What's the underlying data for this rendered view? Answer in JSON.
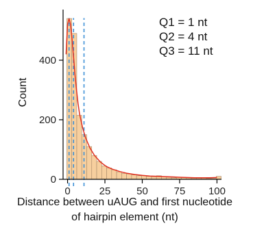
{
  "chart_data": {
    "type": "histogram",
    "xlabel_line1": "Distance between uAUG and first nucleotide",
    "xlabel_line2": "of hairpin element (nt)",
    "ylabel": "Count",
    "xlim": [
      -3,
      103
    ],
    "ylim": [
      0,
      570
    ],
    "x_ticks": [
      0,
      25,
      50,
      75,
      100
    ],
    "y_ticks": [
      0,
      200,
      400
    ],
    "bin_width": 3.33,
    "bins": [
      {
        "x0": -0.5,
        "count": 540
      },
      {
        "x0": 2.83,
        "count": 490
      },
      {
        "x0": 6.17,
        "count": 215
      },
      {
        "x0": 9.5,
        "count": 150
      },
      {
        "x0": 12.83,
        "count": 110
      },
      {
        "x0": 16.17,
        "count": 80
      },
      {
        "x0": 19.5,
        "count": 60
      },
      {
        "x0": 22.83,
        "count": 45
      },
      {
        "x0": 26.17,
        "count": 38
      },
      {
        "x0": 29.5,
        "count": 32
      },
      {
        "x0": 32.83,
        "count": 25
      },
      {
        "x0": 36.17,
        "count": 20
      },
      {
        "x0": 39.5,
        "count": 18
      },
      {
        "x0": 42.83,
        "count": 15
      },
      {
        "x0": 46.17,
        "count": 12
      },
      {
        "x0": 49.5,
        "count": 12
      },
      {
        "x0": 52.83,
        "count": 10
      },
      {
        "x0": 56.17,
        "count": 9
      },
      {
        "x0": 59.5,
        "count": 12
      },
      {
        "x0": 62.83,
        "count": 9
      },
      {
        "x0": 66.17,
        "count": 7
      },
      {
        "x0": 69.5,
        "count": 5
      },
      {
        "x0": 72.83,
        "count": 7
      },
      {
        "x0": 76.17,
        "count": 6
      },
      {
        "x0": 79.5,
        "count": 5
      },
      {
        "x0": 82.83,
        "count": 4
      },
      {
        "x0": 86.17,
        "count": 4
      },
      {
        "x0": 89.5,
        "count": 4
      },
      {
        "x0": 92.83,
        "count": 3
      },
      {
        "x0": 96.17,
        "count": 3
      },
      {
        "x0": 99.5,
        "count": 10
      }
    ],
    "density_curve": {
      "x": [
        -1,
        0,
        1,
        2,
        3,
        4,
        5,
        6,
        7,
        8,
        10,
        12,
        15,
        18,
        22,
        26,
        30,
        35,
        40,
        45,
        50,
        55,
        60,
        65,
        70,
        75,
        80,
        85,
        90,
        95,
        100
      ],
      "y": [
        420,
        520,
        540,
        520,
        470,
        410,
        350,
        300,
        255,
        220,
        175,
        140,
        105,
        80,
        58,
        43,
        34,
        26,
        20,
        16,
        13,
        11,
        10,
        9,
        8,
        7,
        6,
        5,
        5,
        5,
        6
      ]
    },
    "quartiles": [
      {
        "label": "Q1 = 1 nt",
        "value": 1
      },
      {
        "label": "Q2 = 4 nt",
        "value": 4
      },
      {
        "label": "Q3 = 11 nt",
        "value": 11
      }
    ],
    "colors": {
      "bar_fill": "#f7cf9e",
      "bar_stroke": "#a88a6a",
      "curve": "#e03020",
      "quartile_line": "#3b8fd6",
      "axis": "#000000"
    }
  }
}
